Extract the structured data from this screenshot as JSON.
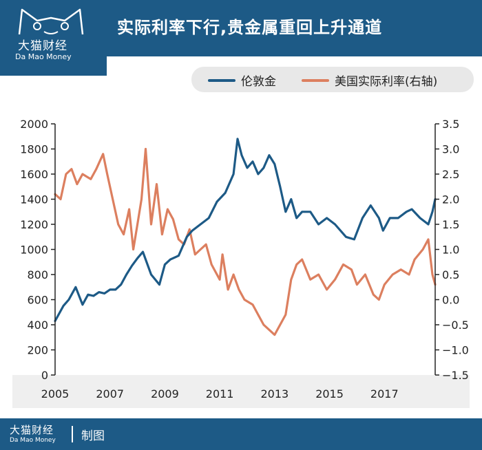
{
  "brand": {
    "name_cn": "大猫财经",
    "name_en": "Da Mao Money"
  },
  "title": "实际利率下行,贵金属重回上升通道",
  "footer": {
    "brand_cn": "大猫财经",
    "brand_en": "Da  Mao  Money",
    "label": "制图"
  },
  "colors": {
    "gold": "#1d5a86",
    "rate": "#dc7f5f",
    "header": "#1d5a86"
  },
  "chart_data": {
    "type": "line",
    "title": "实际利率下行,贵金属重回上升通道",
    "x_ticks": [
      "2005",
      "2007",
      "2009",
      "2011",
      "2013",
      "2015",
      "2017"
    ],
    "x_range": [
      2005,
      2018.85
    ],
    "y_left": {
      "ticks": [
        "2000",
        "1800",
        "1600",
        "1400",
        "1200",
        "1000",
        "800",
        "600",
        "400",
        "200",
        "0"
      ],
      "range": [
        0,
        2000
      ]
    },
    "y_right": {
      "ticks": [
        "3.5",
        "3.0",
        "2.5",
        "2.0",
        "1.5",
        "1.0",
        "0.5",
        "0.0",
        "−0.5",
        "−1.0",
        "−1.5"
      ],
      "range": [
        -1.5,
        3.5
      ]
    },
    "series": [
      {
        "name": "伦敦金",
        "axis": "left",
        "points": [
          [
            2005.0,
            430
          ],
          [
            2005.3,
            550
          ],
          [
            2005.5,
            600
          ],
          [
            2005.75,
            700
          ],
          [
            2006.0,
            560
          ],
          [
            2006.2,
            640
          ],
          [
            2006.4,
            630
          ],
          [
            2006.6,
            660
          ],
          [
            2006.8,
            650
          ],
          [
            2007.0,
            680
          ],
          [
            2007.2,
            680
          ],
          [
            2007.4,
            720
          ],
          [
            2007.6,
            800
          ],
          [
            2007.8,
            870
          ],
          [
            2008.0,
            930
          ],
          [
            2008.2,
            980
          ],
          [
            2008.5,
            800
          ],
          [
            2008.8,
            720
          ],
          [
            2009.0,
            880
          ],
          [
            2009.2,
            920
          ],
          [
            2009.5,
            950
          ],
          [
            2009.8,
            1100
          ],
          [
            2010.0,
            1150
          ],
          [
            2010.3,
            1200
          ],
          [
            2010.6,
            1250
          ],
          [
            2010.9,
            1380
          ],
          [
            2011.2,
            1450
          ],
          [
            2011.5,
            1600
          ],
          [
            2011.65,
            1880
          ],
          [
            2011.8,
            1750
          ],
          [
            2012.0,
            1650
          ],
          [
            2012.2,
            1700
          ],
          [
            2012.4,
            1600
          ],
          [
            2012.6,
            1650
          ],
          [
            2012.8,
            1750
          ],
          [
            2013.0,
            1680
          ],
          [
            2013.2,
            1500
          ],
          [
            2013.4,
            1300
          ],
          [
            2013.6,
            1400
          ],
          [
            2013.8,
            1250
          ],
          [
            2014.0,
            1300
          ],
          [
            2014.3,
            1300
          ],
          [
            2014.6,
            1200
          ],
          [
            2014.9,
            1250
          ],
          [
            2015.2,
            1200
          ],
          [
            2015.6,
            1100
          ],
          [
            2015.9,
            1080
          ],
          [
            2016.2,
            1250
          ],
          [
            2016.5,
            1350
          ],
          [
            2016.8,
            1250
          ],
          [
            2016.95,
            1150
          ],
          [
            2017.2,
            1250
          ],
          [
            2017.5,
            1250
          ],
          [
            2017.8,
            1300
          ],
          [
            2018.0,
            1320
          ],
          [
            2018.3,
            1250
          ],
          [
            2018.6,
            1200
          ],
          [
            2018.75,
            1300
          ],
          [
            2018.85,
            1400
          ]
        ]
      },
      {
        "name": "美国实际利率(右轴)",
        "axis": "right",
        "points": [
          [
            2005.0,
            2.1
          ],
          [
            2005.2,
            2.0
          ],
          [
            2005.4,
            2.5
          ],
          [
            2005.6,
            2.6
          ],
          [
            2005.8,
            2.3
          ],
          [
            2006.0,
            2.5
          ],
          [
            2006.3,
            2.4
          ],
          [
            2006.5,
            2.6
          ],
          [
            2006.75,
            2.9
          ],
          [
            2006.9,
            2.5
          ],
          [
            2007.1,
            2.0
          ],
          [
            2007.3,
            1.5
          ],
          [
            2007.5,
            1.3
          ],
          [
            2007.7,
            1.8
          ],
          [
            2007.85,
            1.0
          ],
          [
            2008.0,
            1.5
          ],
          [
            2008.15,
            2.0
          ],
          [
            2008.3,
            3.0
          ],
          [
            2008.5,
            1.5
          ],
          [
            2008.7,
            2.3
          ],
          [
            2008.9,
            1.3
          ],
          [
            2009.1,
            1.8
          ],
          [
            2009.3,
            1.6
          ],
          [
            2009.5,
            1.2
          ],
          [
            2009.7,
            1.1
          ],
          [
            2009.9,
            1.4
          ],
          [
            2010.1,
            0.9
          ],
          [
            2010.3,
            1.0
          ],
          [
            2010.5,
            1.1
          ],
          [
            2010.7,
            0.7
          ],
          [
            2010.9,
            0.5
          ],
          [
            2011.0,
            0.4
          ],
          [
            2011.1,
            0.9
          ],
          [
            2011.3,
            0.2
          ],
          [
            2011.5,
            0.5
          ],
          [
            2011.7,
            0.2
          ],
          [
            2011.9,
            0.0
          ],
          [
            2012.2,
            -0.1
          ],
          [
            2012.4,
            -0.3
          ],
          [
            2012.6,
            -0.5
          ],
          [
            2012.8,
            -0.6
          ],
          [
            2013.0,
            -0.7
          ],
          [
            2013.2,
            -0.5
          ],
          [
            2013.4,
            -0.3
          ],
          [
            2013.6,
            0.4
          ],
          [
            2013.8,
            0.7
          ],
          [
            2014.0,
            0.8
          ],
          [
            2014.3,
            0.4
          ],
          [
            2014.6,
            0.5
          ],
          [
            2014.9,
            0.2
          ],
          [
            2015.2,
            0.4
          ],
          [
            2015.5,
            0.7
          ],
          [
            2015.8,
            0.6
          ],
          [
            2016.0,
            0.3
          ],
          [
            2016.3,
            0.5
          ],
          [
            2016.6,
            0.1
          ],
          [
            2016.8,
            0.0
          ],
          [
            2017.0,
            0.3
          ],
          [
            2017.3,
            0.5
          ],
          [
            2017.6,
            0.6
          ],
          [
            2017.9,
            0.5
          ],
          [
            2018.1,
            0.8
          ],
          [
            2018.4,
            1.0
          ],
          [
            2018.6,
            1.2
          ],
          [
            2018.75,
            0.5
          ],
          [
            2018.85,
            0.3
          ]
        ]
      }
    ]
  }
}
